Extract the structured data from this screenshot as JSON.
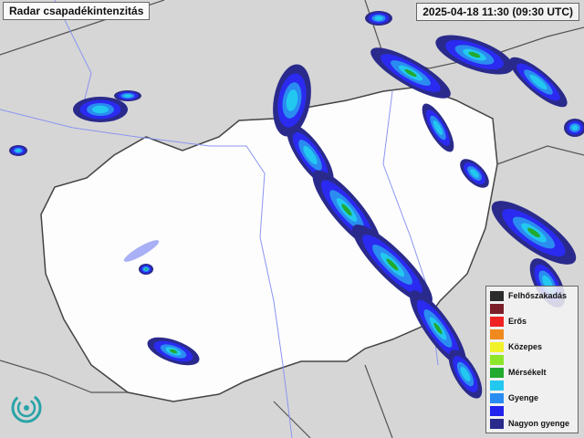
{
  "header": {
    "title": "Radar csapadékintenzitás",
    "timestamp": "2025-04-18 11:30 (09:30 UTC)"
  },
  "legend": {
    "items": [
      {
        "label": "Felhőszakadás",
        "color": "#2b2b2b"
      },
      {
        "label": "",
        "color": "#7a1f2a"
      },
      {
        "label": "Erős",
        "color": "#ee2222"
      },
      {
        "label": "",
        "color": "#f08a1e"
      },
      {
        "label": "Közepes",
        "color": "#f2f22a"
      },
      {
        "label": "",
        "color": "#8ee62a"
      },
      {
        "label": "Mérsékelt",
        "color": "#22aa2e"
      },
      {
        "label": "",
        "color": "#22c8f0"
      },
      {
        "label": "Gyenge",
        "color": "#2a8cf0"
      },
      {
        "label": "",
        "color": "#2222ee"
      },
      {
        "label": "Nagyon gyenge",
        "color": "#2a2a8c"
      }
    ]
  },
  "logo": {
    "name": "met-service-logo-icon"
  }
}
